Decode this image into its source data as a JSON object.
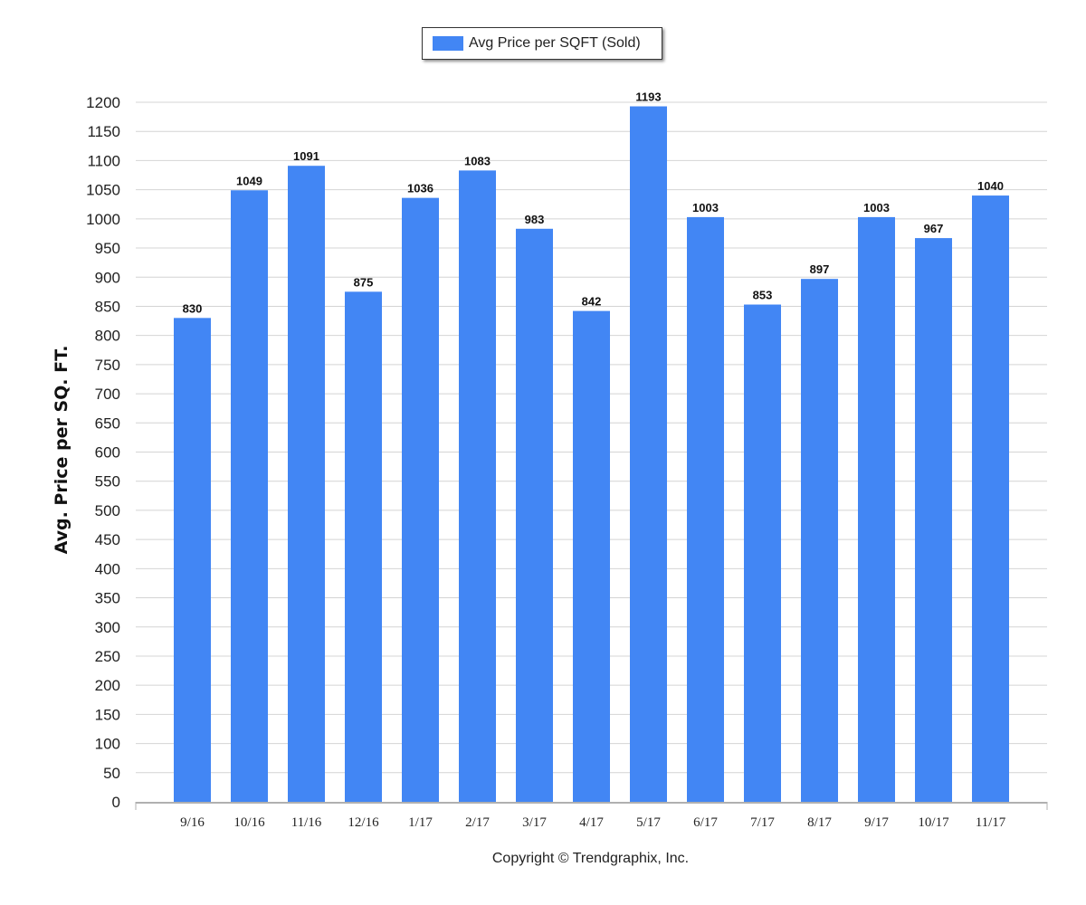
{
  "legend": {
    "label": "Avg Price per SQFT (Sold)",
    "swatch_color": "#4286f4"
  },
  "footer": {
    "copyright": "Copyright © Trendgraphix, Inc."
  },
  "chart_data": {
    "type": "bar",
    "categories": [
      "9/16",
      "10/16",
      "11/16",
      "12/16",
      "1/17",
      "2/17",
      "3/17",
      "4/17",
      "5/17",
      "6/17",
      "7/17",
      "8/17",
      "9/17",
      "10/17",
      "11/17"
    ],
    "series": [
      {
        "name": "Avg Price per SQFT (Sold)",
        "values": [
          830,
          1049,
          1091,
          875,
          1036,
          1083,
          983,
          842,
          1193,
          1003,
          853,
          897,
          1003,
          967,
          1040
        ]
      }
    ],
    "xlabel": "",
    "ylabel": "Avg. Price per SQ. FT.",
    "ylim": [
      0,
      1200
    ],
    "yticks": [
      0,
      50,
      100,
      150,
      200,
      250,
      300,
      350,
      400,
      450,
      500,
      550,
      600,
      650,
      700,
      750,
      800,
      850,
      900,
      950,
      1000,
      1050,
      1100,
      1150,
      1200
    ],
    "grid": true,
    "legend_position": "top-center",
    "bar_color": "#4286f4",
    "data_labels": true
  }
}
